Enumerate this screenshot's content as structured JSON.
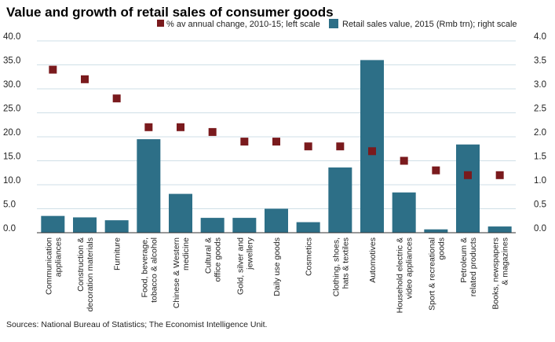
{
  "chart_data": {
    "type": "bar",
    "title": "Value and growth of retail sales of consumer goods",
    "source": "Sources: National Bureau of Statistics; The Economist Intelligence Unit.",
    "left_axis": {
      "ylim": [
        0,
        40
      ],
      "ticks": [
        "0.0",
        "5.0",
        "10.0",
        "15.0",
        "20.0",
        "25.0",
        "30.0",
        "35.0",
        "40.0"
      ]
    },
    "right_axis": {
      "ylim": [
        0,
        4
      ],
      "ticks": [
        "0.0",
        "0.5",
        "1.0",
        "1.5",
        "2.0",
        "2.5",
        "3.0",
        "3.5",
        "4.0"
      ]
    },
    "categories": [
      [
        "Communication",
        "appliances"
      ],
      [
        "Construction &",
        "decoration materials"
      ],
      [
        "Furniture"
      ],
      [
        "Food, beverage,",
        "tobacco & alcohol"
      ],
      [
        "Chinese & Western",
        "medicine"
      ],
      [
        "Cultural &",
        "office goods"
      ],
      [
        "Gold, silver and",
        "jewellery"
      ],
      [
        "Daily use goods"
      ],
      [
        "Cosmetics"
      ],
      [
        "Clothing, shoes,",
        "hats & textiles"
      ],
      [
        "Automotives"
      ],
      [
        "Household electric &",
        "video appliances"
      ],
      [
        "Sport & recreational",
        "goods"
      ],
      [
        "Petroleum &",
        "related products"
      ],
      [
        "Books, newspapers",
        "& magazines"
      ]
    ],
    "series": [
      {
        "name": "% av annual change, 2010-15; left scale",
        "type": "scatter",
        "axis": "left",
        "color": "#7a1a1d",
        "values": [
          34,
          32,
          28,
          22,
          22,
          21,
          19,
          19,
          18,
          18,
          17,
          15,
          13,
          12,
          12
        ]
      },
      {
        "name": "Retail sales value, 2015 (Rmb trn); right scale",
        "type": "bar",
        "axis": "right",
        "color": "#2d6f87",
        "values": [
          0.35,
          0.32,
          0.26,
          1.95,
          0.81,
          0.31,
          0.31,
          0.5,
          0.22,
          1.36,
          3.6,
          0.84,
          0.07,
          1.84,
          0.13
        ]
      }
    ],
    "grid": true,
    "legend_position": "top"
  }
}
